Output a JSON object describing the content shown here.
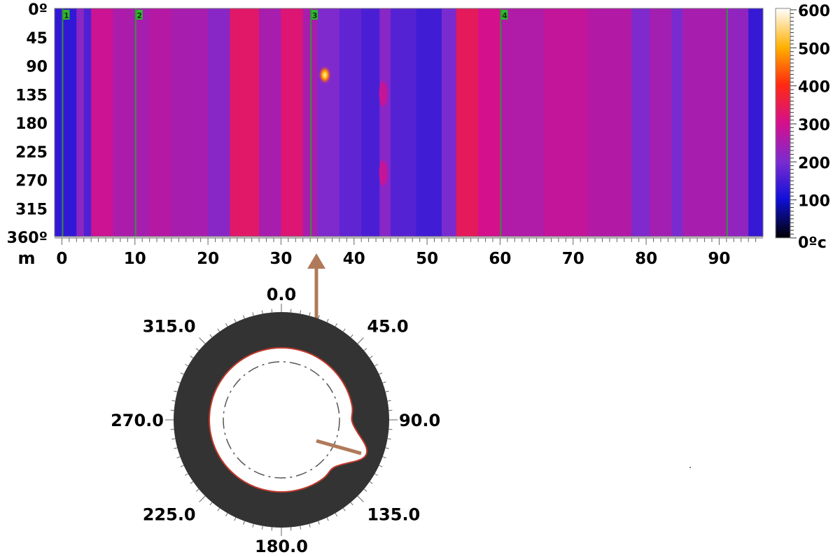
{
  "chart_data": [
    {
      "type": "heatmap",
      "title": "",
      "y_tick_labels": [
        "0º",
        "45",
        "90",
        "135",
        "180",
        "225",
        "270",
        "315",
        "360º"
      ],
      "y_ticks": [
        0,
        45,
        90,
        135,
        180,
        225,
        270,
        315,
        360
      ],
      "ylim": [
        0,
        360
      ],
      "x_axis_label": "m",
      "x_ticks": [
        0,
        10,
        20,
        30,
        40,
        50,
        60,
        70,
        80,
        90
      ],
      "xlim": [
        -1,
        96
      ],
      "colorbar": {
        "ticks": [
          0,
          100,
          200,
          300,
          400,
          500,
          600
        ],
        "tick_labels": [
          "0ºc",
          "100",
          "200",
          "300",
          "400",
          "500",
          "600"
        ],
        "range": [
          0,
          600
        ],
        "colors": [
          "#000000",
          "#1010d8",
          "#7a2bd0",
          "#d4108c",
          "#ff2a10",
          "#ffb000",
          "#ffffff"
        ]
      },
      "markers": [
        {
          "label": "1",
          "x": 0
        },
        {
          "label": "2",
          "x": 10
        },
        {
          "label": "3",
          "x": 34
        },
        {
          "label": "4",
          "x": 60
        },
        {
          "label": "",
          "x": 91
        }
      ],
      "bands": [
        {
          "x0": -1,
          "x1": 2,
          "value": 130
        },
        {
          "x0": 2,
          "x1": 3,
          "value": 220
        },
        {
          "x0": 3,
          "x1": 4,
          "value": 160
        },
        {
          "x0": 4,
          "x1": 7,
          "value": 290
        },
        {
          "x0": 7,
          "x1": 9.5,
          "value": 255
        },
        {
          "x0": 9.5,
          "x1": 12,
          "value": 250
        },
        {
          "x0": 12,
          "x1": 15,
          "value": 265
        },
        {
          "x0": 15,
          "x1": 20,
          "value": 250
        },
        {
          "x0": 20,
          "x1": 23,
          "value": 215
        },
        {
          "x0": 23,
          "x1": 27,
          "value": 330
        },
        {
          "x0": 27,
          "x1": 30,
          "value": 250
        },
        {
          "x0": 30,
          "x1": 33,
          "value": 320
        },
        {
          "x0": 33,
          "x1": 35,
          "value": 250
        },
        {
          "x0": 35,
          "x1": 38,
          "value": 205
        },
        {
          "x0": 38,
          "x1": 41,
          "value": 175
        },
        {
          "x0": 41,
          "x1": 43.5,
          "value": 155
        },
        {
          "x0": 43.5,
          "x1": 45,
          "value": 215
        },
        {
          "x0": 45,
          "x1": 48.5,
          "value": 165
        },
        {
          "x0": 48.5,
          "x1": 52,
          "value": 145
        },
        {
          "x0": 52,
          "x1": 54,
          "value": 200
        },
        {
          "x0": 54,
          "x1": 57,
          "value": 340
        },
        {
          "x0": 57,
          "x1": 60,
          "value": 300
        },
        {
          "x0": 60,
          "x1": 66,
          "value": 260
        },
        {
          "x0": 66,
          "x1": 72,
          "value": 280
        },
        {
          "x0": 72,
          "x1": 78,
          "value": 262
        },
        {
          "x0": 78,
          "x1": 80.5,
          "value": 205
        },
        {
          "x0": 80.5,
          "x1": 83.5,
          "value": 245
        },
        {
          "x0": 83.5,
          "x1": 85,
          "value": 200
        },
        {
          "x0": 85,
          "x1": 91,
          "value": 250
        },
        {
          "x0": 91,
          "x1": 94,
          "value": 225
        },
        {
          "x0": 94,
          "x1": 96,
          "value": 135
        }
      ],
      "hotspots": [
        {
          "x": 36,
          "y": 105,
          "value": 600
        },
        {
          "x": 44,
          "y": 135,
          "value": 300
        },
        {
          "x": 44,
          "y": 260,
          "value": 300
        }
      ]
    },
    {
      "type": "polar",
      "title": "",
      "angle_labels": [
        "0.0",
        "45.0",
        "90.0",
        "135.0",
        "180.0",
        "225.0",
        "270.0",
        "315.0"
      ],
      "angles": [
        0,
        45,
        90,
        135,
        180,
        225,
        270,
        315
      ],
      "colors": {
        "shell": "#333333",
        "inner": "#ffffff",
        "profile": "#c0392b",
        "pointer": "#b07a5a"
      },
      "deformation_angle": 112
    }
  ]
}
